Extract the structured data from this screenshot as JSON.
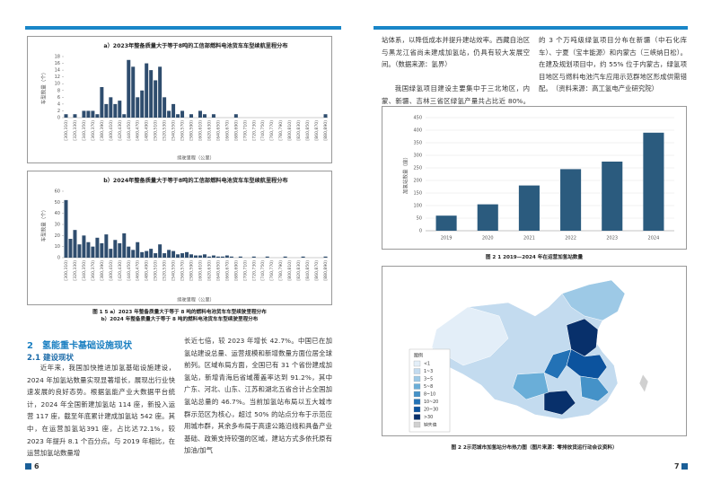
{
  "chart_data": [
    {
      "type": "bar",
      "title": "a）2023年整备质量大于等于8吨的工信部燃料电池货车车型续航里程分布",
      "y_label": "车型数量（个）",
      "x_label": "续驶里程（公里）",
      "color": "#2f4d6e",
      "grid": false,
      "categories": [
        "[300,310)",
        null,
        "[320,330)",
        null,
        "[340,350)",
        null,
        "[360,370)",
        null,
        "[380,390)",
        null,
        "[400,410)",
        null,
        "[420,430)",
        null,
        "[440,450)",
        null,
        "[460,470)",
        null,
        "[480,490)",
        null,
        "[500,510)",
        null,
        "[520,530)",
        null,
        "[540,550)",
        null,
        "[560,570)",
        null,
        "[580,590)",
        null,
        "[600,610)",
        null,
        "[620,630)",
        null,
        "[640,650)",
        null,
        "[660,670)",
        null,
        "[680,690)",
        null,
        "[700,710)",
        null,
        "[720,730)",
        null,
        "[740,750)",
        null,
        "[760,770)",
        null,
        "[780,790)",
        null,
        "[800,810)",
        null,
        "[820,830)",
        null,
        "[840,850)",
        null,
        "[860,870)",
        null,
        "[880,890)"
      ],
      "values": [
        1,
        0,
        1,
        0,
        2,
        2,
        2,
        1,
        9,
        4,
        6,
        4,
        5,
        1,
        17,
        15,
        6,
        8,
        16,
        14,
        11,
        15,
        6,
        2,
        4,
        1,
        2,
        0,
        1,
        0,
        2,
        1,
        0,
        1,
        0,
        0,
        0,
        0,
        1,
        0,
        0,
        0,
        0,
        0,
        0,
        0,
        0,
        0,
        0,
        0,
        0,
        0,
        0,
        0,
        0,
        0,
        0,
        0,
        1
      ],
      "ylim": [
        0,
        18
      ],
      "yticks": [
        0,
        2,
        4,
        6,
        8,
        10,
        12,
        14,
        16,
        18
      ]
    },
    {
      "type": "bar",
      "title": "b）2024年整备质量大于等于8吨的工信部燃料电池货车车型续航里程分布",
      "y_label": "车型数量（个）",
      "x_label": "续驶里程（公里）",
      "color": "#2f4d6e",
      "grid": false,
      "categories": [
        "[300,310)",
        null,
        "[320,330)",
        null,
        "[340,350)",
        null,
        "[360,370)",
        null,
        "[380,390)",
        null,
        "[400,410)",
        null,
        "[420,430)",
        null,
        "[440,450)",
        null,
        "[460,470)",
        null,
        "[480,490)",
        null,
        "[500,510)",
        null,
        "[520,530)",
        null,
        "[540,550)",
        null,
        "[560,570)",
        null,
        "[580,590)",
        null,
        "[600,610)",
        null,
        "[620,630)",
        null,
        "[640,650)",
        null,
        "[660,670)",
        null,
        "[680,690)",
        null,
        "[700,710)",
        null,
        "[720,730)",
        null,
        "[740,750)",
        null,
        "[760,770)",
        null,
        "[780,790)",
        null,
        "[800,810)",
        null,
        "[820,830)",
        null,
        "[840,850)",
        null,
        "[860,870)",
        null,
        "[880,890)"
      ],
      "values": [
        52,
        17,
        25,
        12,
        20,
        14,
        10,
        18,
        13,
        21,
        8,
        16,
        13,
        22,
        10,
        7,
        14,
        5,
        6,
        8,
        4,
        12,
        4,
        7,
        6,
        3,
        4,
        5,
        3,
        2,
        2,
        3,
        1,
        2,
        1,
        1,
        2,
        1,
        0,
        1,
        0,
        0,
        1,
        0,
        0,
        1,
        0,
        0,
        0,
        1,
        0,
        0,
        0,
        1,
        0,
        0,
        0,
        0,
        1
      ],
      "ylim": [
        0,
        60
      ],
      "yticks": [
        0,
        10,
        20,
        30,
        40,
        50,
        60
      ]
    },
    {
      "type": "bar",
      "y_label": "加氢站数量（座）",
      "color": "#2b5b7e",
      "grid": true,
      "categories": [
        "2019",
        "2020",
        "2021",
        "2022",
        "2023",
        "2024"
      ],
      "values": [
        60,
        105,
        180,
        245,
        275,
        390
      ],
      "ylim": [
        0,
        450
      ],
      "yticks": [
        0,
        50,
        100,
        150,
        200,
        250,
        300,
        350,
        400,
        450
      ]
    }
  ],
  "document": {
    "left": {
      "caption_1": "图 1 5 a）2023 年整备质量大于等于 8 吨的燃料电池货车车型续驶里程分布",
      "caption_2": "b）2024 年整备质量大于等于 8 吨的燃料电池货车车型续驶里程分布",
      "section": "2　氢能重卡基础设施现状",
      "subsection": "2.1 建设现状",
      "column_1": "近年来，我国加快推进加氢基础设施建设，2024 年加氢站数量实现显著增长，展现出行业快速发展的良好态势。根据氢能产业大数据平台统计，2024 年全国新建加氢站 114 座，新投入运营 117 座，截至年底累计建成加氢站 542 座。其中，在运营加氢站391 座，占比达72.1%，较 2023 年提升 8.1 个百分点。与 2019 年相比，在运营加氢站数量增",
      "column_2": "长近七倍，较 2023 年增长 42.7%。中国已在加氢站建设总量、运营规模和新增数量方面位居全球前列。区域布局方面，全国已有 31 个省份建成加氢站，新增青海后省域覆盖率达到 91.2%，其中广东、河北、山东、江苏和湖北五省合计占全国加氢站总量的 46.7%。当前加氢站布局以五大城市群示范区为核心，超过 50% 的站点分布于示范应用城市群，其余多布局于高速公路沿线和具备产业基础、政策支持较强的区域，建站方式多依托原有加油/加气",
      "page_number": "6"
    },
    "right": {
      "column_1a": "站体系，以降低成本并提升建站效率。西藏自治区与黑龙江省尚未建成加氢站，仍具有较大发展空间。（数据来源：氢界）",
      "column_1b": "我国绿氢项目建设主要集中于三北地区，内蒙、新疆、吉林三省区绿氢产量共占比近 80%。已建成",
      "column_2a": "的 3 个万吨级绿氢项目分布在新疆（中石化库车）、宁夏（宝丰能源）和内蒙古（三峡纳日松）。在建及规划项目中，约 55% 位于内蒙古，绿氢项目地区与燃料电池汽车应用示范群地区形成供需错配。",
      "column_2b": "（资料来源：高工氢电产业研究院）",
      "caption_chart": "图 2 1 2019—2024 年在运营加氢站数量",
      "caption_map": "图 2 2示范城市加氢站分布热力图（图片来源：零排放货运行动会议资料）",
      "page_number": "7"
    },
    "map": {
      "legend_title": "图例",
      "legend": [
        {
          "label": "<1",
          "color": "#e3eef8"
        },
        {
          "label": "1~3",
          "color": "#c3dbef"
        },
        {
          "label": "3~5",
          "color": "#9dc9e6"
        },
        {
          "label": "5~8",
          "color": "#6aaed8"
        },
        {
          "label": "8~10",
          "color": "#4592c8"
        },
        {
          "label": "10~20",
          "color": "#2372b6"
        },
        {
          "label": "20~30",
          "color": "#0c539e"
        },
        {
          "label": ">30",
          "color": "#08306b"
        },
        {
          "label": "缺失值",
          "color": "#d0d0d0"
        }
      ]
    }
  }
}
